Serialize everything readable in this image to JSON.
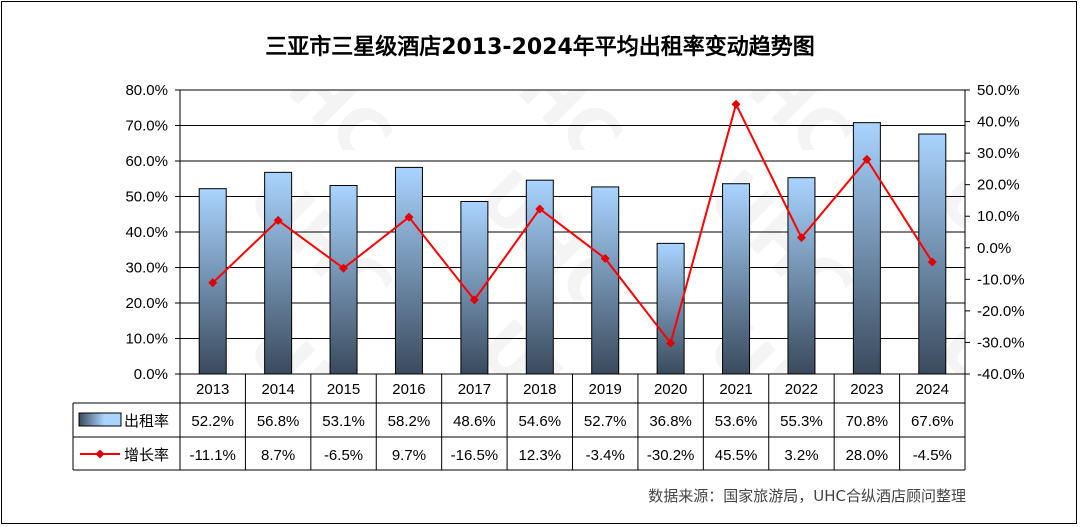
{
  "chart_data": {
    "type": "bar+line",
    "title": "三亚市三星级酒店2013-2024年平均出租率变动趋势图",
    "categories": [
      "2013",
      "2014",
      "2015",
      "2016",
      "2017",
      "2018",
      "2019",
      "2020",
      "2021",
      "2022",
      "2023",
      "2024"
    ],
    "series": [
      {
        "name": "出租率",
        "type": "bar",
        "axis": "left",
        "values": [
          52.2,
          56.8,
          53.1,
          58.2,
          48.6,
          54.6,
          52.7,
          36.8,
          53.6,
          55.3,
          70.8,
          67.6
        ],
        "labels": [
          "52.2%",
          "56.8%",
          "53.1%",
          "58.2%",
          "48.6%",
          "54.6%",
          "52.7%",
          "36.8%",
          "53.6%",
          "55.3%",
          "70.8%",
          "67.6%"
        ]
      },
      {
        "name": "增长率",
        "type": "line",
        "axis": "right",
        "values": [
          -11.1,
          8.7,
          -6.5,
          9.7,
          -16.5,
          12.3,
          -3.4,
          -30.2,
          45.5,
          3.2,
          28.0,
          -4.5
        ],
        "labels": [
          "-11.1%",
          "8.7%",
          "-6.5%",
          "9.7%",
          "-16.5%",
          "12.3%",
          "-3.4%",
          "-30.2%",
          "45.5%",
          "3.2%",
          "28.0%",
          "-4.5%"
        ]
      }
    ],
    "left_axis": {
      "ylim": [
        0,
        80
      ],
      "ticks": [
        0,
        10,
        20,
        30,
        40,
        50,
        60,
        70,
        80
      ],
      "tick_labels": [
        "0.0%",
        "10.0%",
        "20.0%",
        "30.0%",
        "40.0%",
        "50.0%",
        "60.0%",
        "70.0%",
        "80.0%"
      ]
    },
    "right_axis": {
      "ylim": [
        -40,
        50
      ],
      "ticks": [
        -40,
        -30,
        -20,
        -10,
        0,
        10,
        20,
        30,
        40,
        50
      ],
      "tick_labels": [
        "-40.0%",
        "-30.0%",
        "-20.0%",
        "-10.0%",
        "0.0%",
        "10.0%",
        "20.0%",
        "30.0%",
        "40.0%",
        "50.0%"
      ]
    },
    "grid": true,
    "data_table": true,
    "source": "数据来源：国家旅游局，UHC合纵酒店顾问整理",
    "colors": {
      "bar_top": "#a9d4ff",
      "bar_bottom": "#3a4a5c",
      "line": "#ff0000",
      "marker": "#e00000"
    }
  }
}
